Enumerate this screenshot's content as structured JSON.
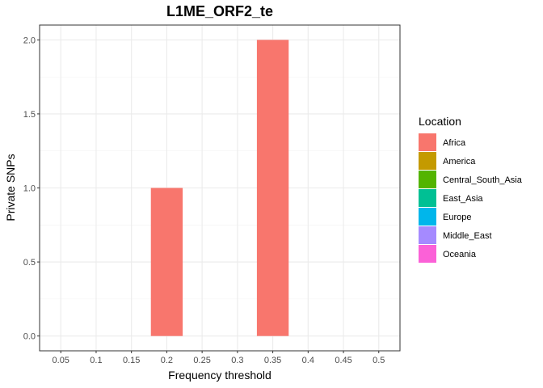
{
  "chart_data": {
    "type": "bar",
    "title": "L1ME_ORF2_te",
    "xlabel": "Frequency threshold",
    "ylabel": "Private SNPs",
    "categories": [
      "0.05",
      "0.1",
      "0.15",
      "0.2",
      "0.25",
      "0.3",
      "0.35",
      "0.4",
      "0.45",
      "0.5"
    ],
    "series": [
      {
        "name": "Africa",
        "color": "#F8766D",
        "values": [
          0,
          0,
          0,
          1,
          0,
          0,
          2,
          0,
          0,
          0
        ]
      },
      {
        "name": "America",
        "color": "#C49A00",
        "values": [
          0,
          0,
          0,
          0,
          0,
          0,
          0,
          0,
          0,
          0
        ]
      },
      {
        "name": "Central_South_Asia",
        "color": "#53B400",
        "values": [
          0,
          0,
          0,
          0,
          0,
          0,
          0,
          0,
          0,
          0
        ]
      },
      {
        "name": "East_Asia",
        "color": "#00C094",
        "values": [
          0,
          0,
          0,
          0,
          0,
          0,
          0,
          0,
          0,
          0
        ]
      },
      {
        "name": "Europe",
        "color": "#00B6EB",
        "values": [
          0,
          0,
          0,
          0,
          0,
          0,
          0,
          0,
          0,
          0
        ]
      },
      {
        "name": "Middle_East",
        "color": "#A58AFF",
        "values": [
          0,
          0,
          0,
          0,
          0,
          0,
          0,
          0,
          0,
          0
        ]
      },
      {
        "name": "Oceania",
        "color": "#FB61D7",
        "values": [
          0,
          0,
          0,
          0,
          0,
          0,
          0,
          0,
          0,
          0
        ]
      }
    ],
    "ylim": [
      -0.1,
      2.1
    ],
    "yticks": [
      "0.0",
      "0.5",
      "1.0",
      "1.5",
      "2.0"
    ],
    "legend_title": "Location",
    "legend_position": "right",
    "grid": true
  }
}
